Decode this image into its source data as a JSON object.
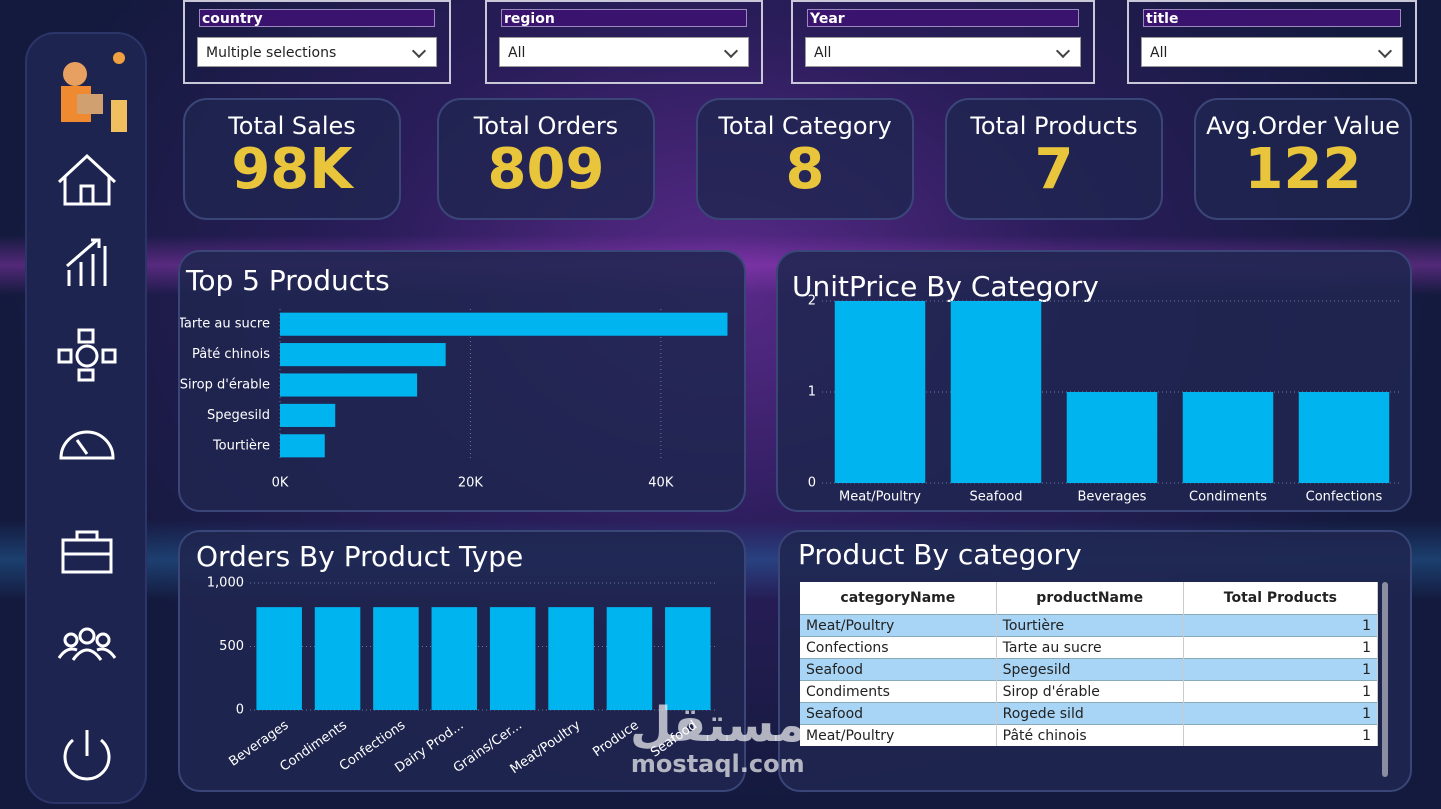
{
  "filters": [
    {
      "label": "country",
      "value": "Multiple selections"
    },
    {
      "label": "region",
      "value": "All"
    },
    {
      "label": "Year",
      "value": "All"
    },
    {
      "label": "title",
      "value": "All"
    }
  ],
  "kpis": [
    {
      "label": "Total Sales",
      "value": "98K"
    },
    {
      "label": "Total Orders",
      "value": "809"
    },
    {
      "label": "Total Category",
      "value": "8"
    },
    {
      "label": "Total Products",
      "value": "7"
    },
    {
      "label": "Avg.Order Value",
      "value": "122"
    }
  ],
  "chart_data": [
    {
      "type": "bar",
      "orientation": "horizontal",
      "title": "Top 5 Products",
      "categories": [
        "Tarte au sucre",
        "Pâté chinois",
        "Sirop d'érable",
        "Spegesild",
        "Tourtière"
      ],
      "values": [
        47000,
        17400,
        14400,
        5800,
        4700
      ],
      "color": "#00b4f0",
      "xlim": [
        0,
        48000
      ],
      "xticks": [
        {
          "value": 0,
          "label": "0K"
        },
        {
          "value": 20000,
          "label": "20K"
        },
        {
          "value": 40000,
          "label": "40K"
        }
      ],
      "grid": true
    },
    {
      "type": "bar",
      "orientation": "vertical",
      "title": "UnitPrice By Category",
      "categories": [
        "Meat/Poultry",
        "Seafood",
        "Beverages",
        "Condiments",
        "Confections"
      ],
      "values": [
        2,
        2,
        1,
        1,
        1
      ],
      "color": "#00b4f0",
      "ylim": [
        0,
        2
      ],
      "yticks": [
        0,
        1,
        2
      ],
      "grid": true
    },
    {
      "type": "bar",
      "orientation": "vertical",
      "title": "Orders By Product Type",
      "categories": [
        "Beverages",
        "Condiments",
        "Confections",
        "Dairy Prod...",
        "Grains/Cer...",
        "Meat/Poultry",
        "Produce",
        "Seafood"
      ],
      "values": [
        810,
        810,
        810,
        810,
        810,
        810,
        810,
        810
      ],
      "color": "#00b4f0",
      "ylim": [
        0,
        1000
      ],
      "yticks": [
        0,
        500,
        {
          "value": 1000,
          "label": "1,000"
        }
      ],
      "grid": true
    }
  ],
  "table": {
    "title": "Product By category",
    "columns": [
      "categoryName",
      "productName",
      "Total Products"
    ],
    "rows": [
      [
        "Meat/Poultry",
        "Tourtière",
        "1"
      ],
      [
        "Confections",
        "Tarte au sucre",
        "1"
      ],
      [
        "Seafood",
        "Spegesild",
        "1"
      ],
      [
        "Condiments",
        "Sirop d'érable",
        "1"
      ],
      [
        "Seafood",
        "Rogede sild",
        "1"
      ],
      [
        "Meat/Poultry",
        "Pâté chinois",
        "1"
      ]
    ]
  },
  "watermark": {
    "arabic": "مستقل",
    "latin": "mostaql.com"
  }
}
